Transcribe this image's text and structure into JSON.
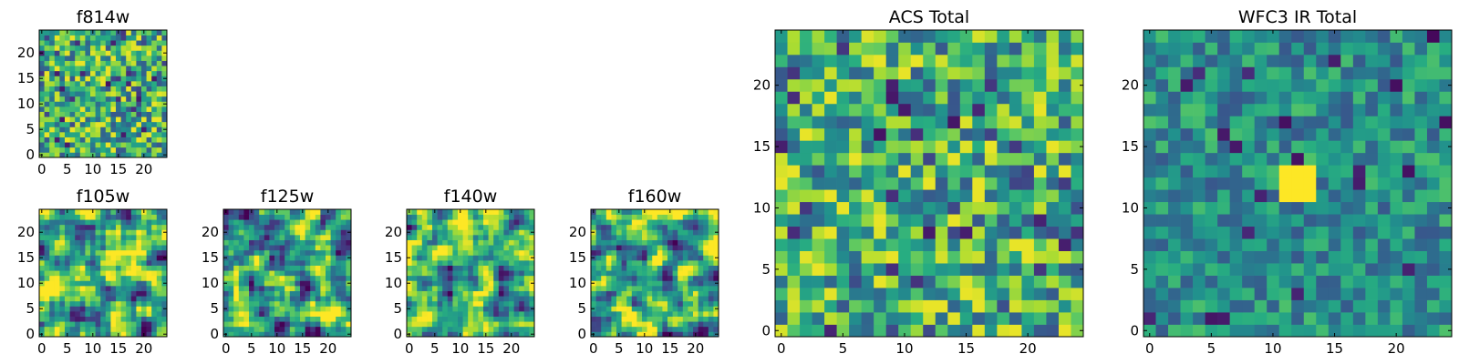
{
  "chart_data": [
    {
      "id": "f814w",
      "type": "heatmap",
      "title": "f814w",
      "xticks": [
        0,
        5,
        10,
        15,
        20
      ],
      "yticks": [
        0,
        5,
        10,
        15,
        20
      ],
      "xlim": [
        -0.5,
        24.5
      ],
      "ylim": [
        -0.5,
        24.5
      ],
      "grid_size": 25,
      "colormap": "viridis",
      "pixel_values": "random noise, mostly high (green-yellow) with sparse dark pixels"
    },
    {
      "id": "f105w",
      "type": "heatmap",
      "title": "f105w",
      "xticks": [
        0,
        5,
        10,
        15,
        20
      ],
      "yticks": [
        0,
        5,
        10,
        15,
        20
      ],
      "xlim": [
        -0.5,
        24.5
      ],
      "ylim": [
        -0.5,
        24.5
      ],
      "grid_size": 25,
      "colormap": "viridis",
      "pixel_values": "smooth correlated noise, mid-high values"
    },
    {
      "id": "f125w",
      "type": "heatmap",
      "title": "f125w",
      "xticks": [
        0,
        5,
        10,
        15,
        20
      ],
      "yticks": [
        0,
        5,
        10,
        15,
        20
      ],
      "xlim": [
        -0.5,
        24.5
      ],
      "ylim": [
        -0.5,
        24.5
      ],
      "grid_size": 25,
      "colormap": "viridis",
      "pixel_values": "smooth correlated noise, mid-high values"
    },
    {
      "id": "f140w",
      "type": "heatmap",
      "title": "f140w",
      "xticks": [
        0,
        5,
        10,
        15,
        20
      ],
      "yticks": [
        0,
        5,
        10,
        15,
        20
      ],
      "xlim": [
        -0.5,
        24.5
      ],
      "ylim": [
        -0.5,
        24.5
      ],
      "grid_size": 25,
      "colormap": "viridis",
      "pixel_values": "smooth correlated noise, mid-high values"
    },
    {
      "id": "f160w",
      "type": "heatmap",
      "title": "f160w",
      "xticks": [
        0,
        5,
        10,
        15,
        20
      ],
      "yticks": [
        0,
        5,
        10,
        15,
        20
      ],
      "xlim": [
        -0.5,
        24.5
      ],
      "ylim": [
        -0.5,
        24.5
      ],
      "grid_size": 25,
      "colormap": "viridis",
      "pixel_values": "smooth correlated noise, mid-high values"
    },
    {
      "id": "acs_total",
      "type": "heatmap",
      "title": "ACS Total",
      "xticks": [
        0,
        5,
        10,
        15,
        20
      ],
      "yticks": [
        0,
        5,
        10,
        15,
        20
      ],
      "xlim": [
        -0.5,
        24.5
      ],
      "ylim": [
        -0.5,
        24.5
      ],
      "grid_size": 25,
      "colormap": "viridis",
      "pixel_values": "random noise, mostly green-yellow with a few dark pixels"
    },
    {
      "id": "wfc3_ir_total",
      "type": "heatmap",
      "title": "WFC3 IR Total",
      "xticks": [
        0,
        5,
        10,
        15,
        20
      ],
      "yticks": [
        0,
        5,
        10,
        15,
        20
      ],
      "xlim": [
        -0.5,
        24.5
      ],
      "ylim": [
        -0.5,
        24.5
      ],
      "grid_size": 25,
      "colormap": "viridis",
      "pixel_values": "teal-green noise with a bright yellow source near x=11-13, y=11-13",
      "bright_source": {
        "x": [
          11,
          13
        ],
        "y": [
          11,
          13
        ],
        "peak": [
          12,
          13
        ]
      }
    }
  ]
}
